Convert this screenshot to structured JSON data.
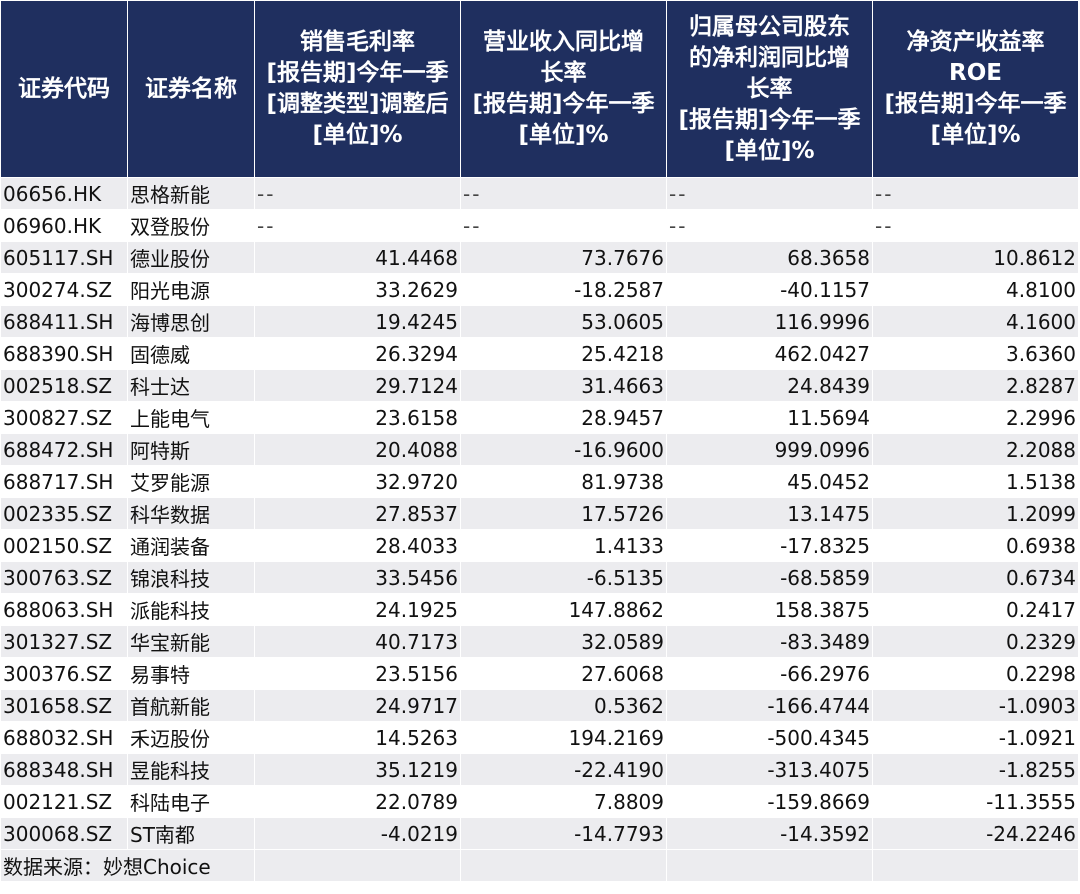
{
  "headers": [
    [
      "证券代码"
    ],
    [
      "证券名称"
    ],
    [
      "销售毛利率",
      "[报告期]今年一季",
      "[调整类型]调整后",
      "[单位]%"
    ],
    [
      "营业收入同比增",
      "长率",
      "[报告期]今年一季",
      "[单位]%"
    ],
    [
      "归属母公司股东",
      "的净利润同比增",
      "长率",
      "[报告期]今年一季",
      "[单位]%"
    ],
    [
      "净资产收益率",
      "ROE",
      "[报告期]今年一季",
      "[单位]%"
    ]
  ],
  "rows": [
    [
      "06656.HK",
      "思格新能",
      "--",
      "--",
      "--",
      "--"
    ],
    [
      "06960.HK",
      "双登股份",
      "--",
      "--",
      "--",
      "--"
    ],
    [
      "605117.SH",
      "德业股份",
      "41.4468",
      "73.7676",
      "68.3658",
      "10.8612"
    ],
    [
      "300274.SZ",
      "阳光电源",
      "33.2629",
      "-18.2587",
      "-40.1157",
      "4.8100"
    ],
    [
      "688411.SH",
      "海博思创",
      "19.4245",
      "53.0605",
      "116.9996",
      "4.1600"
    ],
    [
      "688390.SH",
      "固德威",
      "26.3294",
      "25.4218",
      "462.0427",
      "3.6360"
    ],
    [
      "002518.SZ",
      "科士达",
      "29.7124",
      "31.4663",
      "24.8439",
      "2.8287"
    ],
    [
      "300827.SZ",
      "上能电气",
      "23.6158",
      "28.9457",
      "11.5694",
      "2.2996"
    ],
    [
      "688472.SH",
      "阿特斯",
      "20.4088",
      "-16.9600",
      "999.0996",
      "2.2088"
    ],
    [
      "688717.SH",
      "艾罗能源",
      "32.9720",
      "81.9738",
      "45.0452",
      "1.5138"
    ],
    [
      "002335.SZ",
      "科华数据",
      "27.8537",
      "17.5726",
      "13.1475",
      "1.2099"
    ],
    [
      "002150.SZ",
      "通润装备",
      "28.4033",
      "1.4133",
      "-17.8325",
      "0.6938"
    ],
    [
      "300763.SZ",
      "锦浪科技",
      "33.5456",
      "-6.5135",
      "-68.5859",
      "0.6734"
    ],
    [
      "688063.SH",
      "派能科技",
      "24.1925",
      "147.8862",
      "158.3875",
      "0.2417"
    ],
    [
      "301327.SZ",
      "华宝新能",
      "40.7173",
      "32.0589",
      "-83.3489",
      "0.2329"
    ],
    [
      "300376.SZ",
      "易事特",
      "23.5156",
      "27.6068",
      "-66.2976",
      "0.2298"
    ],
    [
      "301658.SZ",
      "首航新能",
      "24.9717",
      "0.5362",
      "-166.4744",
      "-1.0903"
    ],
    [
      "688032.SH",
      "禾迈股份",
      "14.5263",
      "194.2169",
      "-500.4345",
      "-1.0921"
    ],
    [
      "688348.SH",
      "昱能科技",
      "35.1219",
      "-22.4190",
      "-313.4075",
      "-1.8255"
    ],
    [
      "002121.SZ",
      "科陆电子",
      "22.0789",
      "7.8809",
      "-159.8669",
      "-11.3555"
    ],
    [
      "300068.SZ",
      "ST南都",
      "-4.0219",
      "-14.7793",
      "-14.3592",
      "-24.2246"
    ]
  ],
  "footer": {
    "source": "数据来源：妙想Choice"
  },
  "colors": {
    "header_bg": "#1f2f5f",
    "header_text": "#ffffff",
    "row_stripe": "#ececef",
    "row_plain": "#ffffff"
  }
}
